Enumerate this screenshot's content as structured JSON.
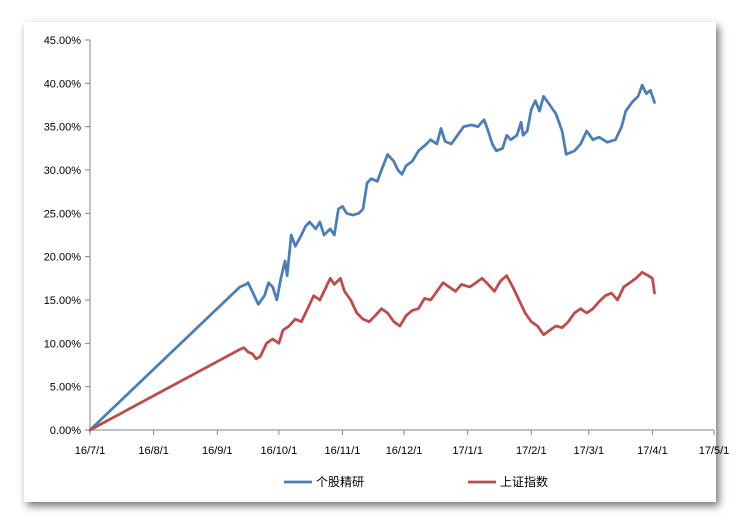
{
  "chart_data": {
    "type": "line",
    "title": "",
    "xlabel": "",
    "ylabel": "",
    "ylim": [
      0,
      0.45
    ],
    "y_ticks": [
      0,
      0.05,
      0.1,
      0.15,
      0.2,
      0.25,
      0.3,
      0.35,
      0.4,
      0.45
    ],
    "y_tick_labels": [
      "0.00%",
      "5.00%",
      "10.00%",
      "15.00%",
      "20.00%",
      "25.00%",
      "30.00%",
      "35.00%",
      "40.00%",
      "45.00%"
    ],
    "x_tick_labels": [
      "16/7/1",
      "16/8/1",
      "16/9/1",
      "16/10/1",
      "16/11/1",
      "16/12/1",
      "17/1/1",
      "17/2/1",
      "17/3/1",
      "17/4/1",
      "17/5/1"
    ],
    "x_tick_dates": [
      "2016-07-01",
      "2016-08-01",
      "2016-09-01",
      "2016-10-01",
      "2016-11-01",
      "2016-12-01",
      "2017-01-01",
      "2017-02-01",
      "2017-03-01",
      "2017-04-01",
      "2017-05-01"
    ],
    "xlim": [
      "2016-07-01",
      "2017-05-01"
    ],
    "grid": false,
    "legend_position": "bottom",
    "series": [
      {
        "name": "个股精研",
        "color": "#4a7ebb",
        "points": [
          [
            "2016-07-01",
            0.0
          ],
          [
            "2016-09-12",
            0.165
          ],
          [
            "2016-09-15",
            0.168
          ],
          [
            "2016-09-16",
            0.17
          ],
          [
            "2016-09-18",
            0.16
          ],
          [
            "2016-09-21",
            0.145
          ],
          [
            "2016-09-24",
            0.155
          ],
          [
            "2016-09-26",
            0.17
          ],
          [
            "2016-09-28",
            0.165
          ],
          [
            "2016-09-30",
            0.15
          ],
          [
            "2016-10-02",
            0.175
          ],
          [
            "2016-10-04",
            0.195
          ],
          [
            "2016-10-05",
            0.178
          ],
          [
            "2016-10-07",
            0.225
          ],
          [
            "2016-10-09",
            0.212
          ],
          [
            "2016-10-12",
            0.225
          ],
          [
            "2016-10-14",
            0.235
          ],
          [
            "2016-10-16",
            0.24
          ],
          [
            "2016-10-19",
            0.232
          ],
          [
            "2016-10-21",
            0.24
          ],
          [
            "2016-10-23",
            0.225
          ],
          [
            "2016-10-26",
            0.232
          ],
          [
            "2016-10-28",
            0.225
          ],
          [
            "2016-10-30",
            0.255
          ],
          [
            "2016-11-01",
            0.258
          ],
          [
            "2016-11-03",
            0.25
          ],
          [
            "2016-11-06",
            0.248
          ],
          [
            "2016-11-09",
            0.25
          ],
          [
            "2016-11-11",
            0.255
          ],
          [
            "2016-11-13",
            0.285
          ],
          [
            "2016-11-15",
            0.29
          ],
          [
            "2016-11-18",
            0.287
          ],
          [
            "2016-11-20",
            0.3
          ],
          [
            "2016-11-23",
            0.318
          ],
          [
            "2016-11-26",
            0.31
          ],
          [
            "2016-11-28",
            0.3
          ],
          [
            "2016-11-30",
            0.295
          ],
          [
            "2016-12-02",
            0.305
          ],
          [
            "2016-12-05",
            0.31
          ],
          [
            "2016-12-08",
            0.322
          ],
          [
            "2016-12-11",
            0.328
          ],
          [
            "2016-12-14",
            0.335
          ],
          [
            "2016-12-17",
            0.33
          ],
          [
            "2016-12-19",
            0.348
          ],
          [
            "2016-12-21",
            0.333
          ],
          [
            "2016-12-24",
            0.33
          ],
          [
            "2016-12-27",
            0.34
          ],
          [
            "2016-12-30",
            0.35
          ],
          [
            "2017-01-03",
            0.352
          ],
          [
            "2017-01-06",
            0.35
          ],
          [
            "2017-01-09",
            0.358
          ],
          [
            "2017-01-11",
            0.345
          ],
          [
            "2017-01-13",
            0.33
          ],
          [
            "2017-01-15",
            0.322
          ],
          [
            "2017-01-18",
            0.325
          ],
          [
            "2017-01-20",
            0.34
          ],
          [
            "2017-01-22",
            0.335
          ],
          [
            "2017-01-25",
            0.34
          ],
          [
            "2017-01-27",
            0.355
          ],
          [
            "2017-01-28",
            0.34
          ],
          [
            "2017-01-30",
            0.345
          ],
          [
            "2017-02-01",
            0.37
          ],
          [
            "2017-02-03",
            0.38
          ],
          [
            "2017-02-05",
            0.368
          ],
          [
            "2017-02-07",
            0.385
          ],
          [
            "2017-02-10",
            0.375
          ],
          [
            "2017-02-13",
            0.365
          ],
          [
            "2017-02-16",
            0.345
          ],
          [
            "2017-02-18",
            0.318
          ],
          [
            "2017-02-22",
            0.322
          ],
          [
            "2017-02-25",
            0.33
          ],
          [
            "2017-02-28",
            0.345
          ],
          [
            "2017-03-03",
            0.335
          ],
          [
            "2017-03-06",
            0.338
          ],
          [
            "2017-03-10",
            0.332
          ],
          [
            "2017-03-14",
            0.335
          ],
          [
            "2017-03-17",
            0.35
          ],
          [
            "2017-03-19",
            0.368
          ],
          [
            "2017-03-22",
            0.378
          ],
          [
            "2017-03-25",
            0.385
          ],
          [
            "2017-03-27",
            0.398
          ],
          [
            "2017-03-29",
            0.388
          ],
          [
            "2017-03-31",
            0.392
          ],
          [
            "2017-04-02",
            0.378
          ]
        ]
      },
      {
        "name": "上证指数",
        "color": "#be4b48",
        "points": [
          [
            "2016-07-01",
            0.0
          ],
          [
            "2016-09-12",
            0.093
          ],
          [
            "2016-09-14",
            0.095
          ],
          [
            "2016-09-16",
            0.09
          ],
          [
            "2016-09-18",
            0.088
          ],
          [
            "2016-09-20",
            0.082
          ],
          [
            "2016-09-22",
            0.085
          ],
          [
            "2016-09-25",
            0.1
          ],
          [
            "2016-09-28",
            0.105
          ],
          [
            "2016-10-01",
            0.1
          ],
          [
            "2016-10-03",
            0.115
          ],
          [
            "2016-10-06",
            0.12
          ],
          [
            "2016-10-09",
            0.128
          ],
          [
            "2016-10-12",
            0.125
          ],
          [
            "2016-10-15",
            0.14
          ],
          [
            "2016-10-18",
            0.155
          ],
          [
            "2016-10-21",
            0.15
          ],
          [
            "2016-10-24",
            0.165
          ],
          [
            "2016-10-26",
            0.175
          ],
          [
            "2016-10-28",
            0.168
          ],
          [
            "2016-10-31",
            0.175
          ],
          [
            "2016-11-02",
            0.16
          ],
          [
            "2016-11-05",
            0.15
          ],
          [
            "2016-11-08",
            0.135
          ],
          [
            "2016-11-11",
            0.128
          ],
          [
            "2016-11-14",
            0.125
          ],
          [
            "2016-11-17",
            0.132
          ],
          [
            "2016-11-20",
            0.14
          ],
          [
            "2016-11-23",
            0.135
          ],
          [
            "2016-11-26",
            0.125
          ],
          [
            "2016-11-29",
            0.12
          ],
          [
            "2016-12-02",
            0.132
          ],
          [
            "2016-12-05",
            0.138
          ],
          [
            "2016-12-08",
            0.14
          ],
          [
            "2016-12-11",
            0.152
          ],
          [
            "2016-12-14",
            0.15
          ],
          [
            "2016-12-17",
            0.16
          ],
          [
            "2016-12-20",
            0.17
          ],
          [
            "2016-12-23",
            0.165
          ],
          [
            "2016-12-26",
            0.16
          ],
          [
            "2016-12-29",
            0.168
          ],
          [
            "2017-01-02",
            0.165
          ],
          [
            "2017-01-05",
            0.17
          ],
          [
            "2017-01-08",
            0.175
          ],
          [
            "2017-01-11",
            0.168
          ],
          [
            "2017-01-14",
            0.16
          ],
          [
            "2017-01-17",
            0.172
          ],
          [
            "2017-01-20",
            0.178
          ],
          [
            "2017-01-23",
            0.165
          ],
          [
            "2017-01-26",
            0.15
          ],
          [
            "2017-01-29",
            0.135
          ],
          [
            "2017-02-01",
            0.125
          ],
          [
            "2017-02-04",
            0.12
          ],
          [
            "2017-02-07",
            0.11
          ],
          [
            "2017-02-10",
            0.115
          ],
          [
            "2017-02-13",
            0.12
          ],
          [
            "2017-02-16",
            0.118
          ],
          [
            "2017-02-19",
            0.125
          ],
          [
            "2017-02-22",
            0.135
          ],
          [
            "2017-02-25",
            0.14
          ],
          [
            "2017-02-28",
            0.135
          ],
          [
            "2017-03-03",
            0.14
          ],
          [
            "2017-03-06",
            0.148
          ],
          [
            "2017-03-09",
            0.155
          ],
          [
            "2017-03-12",
            0.158
          ],
          [
            "2017-03-15",
            0.15
          ],
          [
            "2017-03-18",
            0.165
          ],
          [
            "2017-03-21",
            0.17
          ],
          [
            "2017-03-24",
            0.175
          ],
          [
            "2017-03-27",
            0.182
          ],
          [
            "2017-03-30",
            0.178
          ],
          [
            "2017-04-01",
            0.175
          ],
          [
            "2017-04-02",
            0.158
          ]
        ]
      }
    ]
  }
}
